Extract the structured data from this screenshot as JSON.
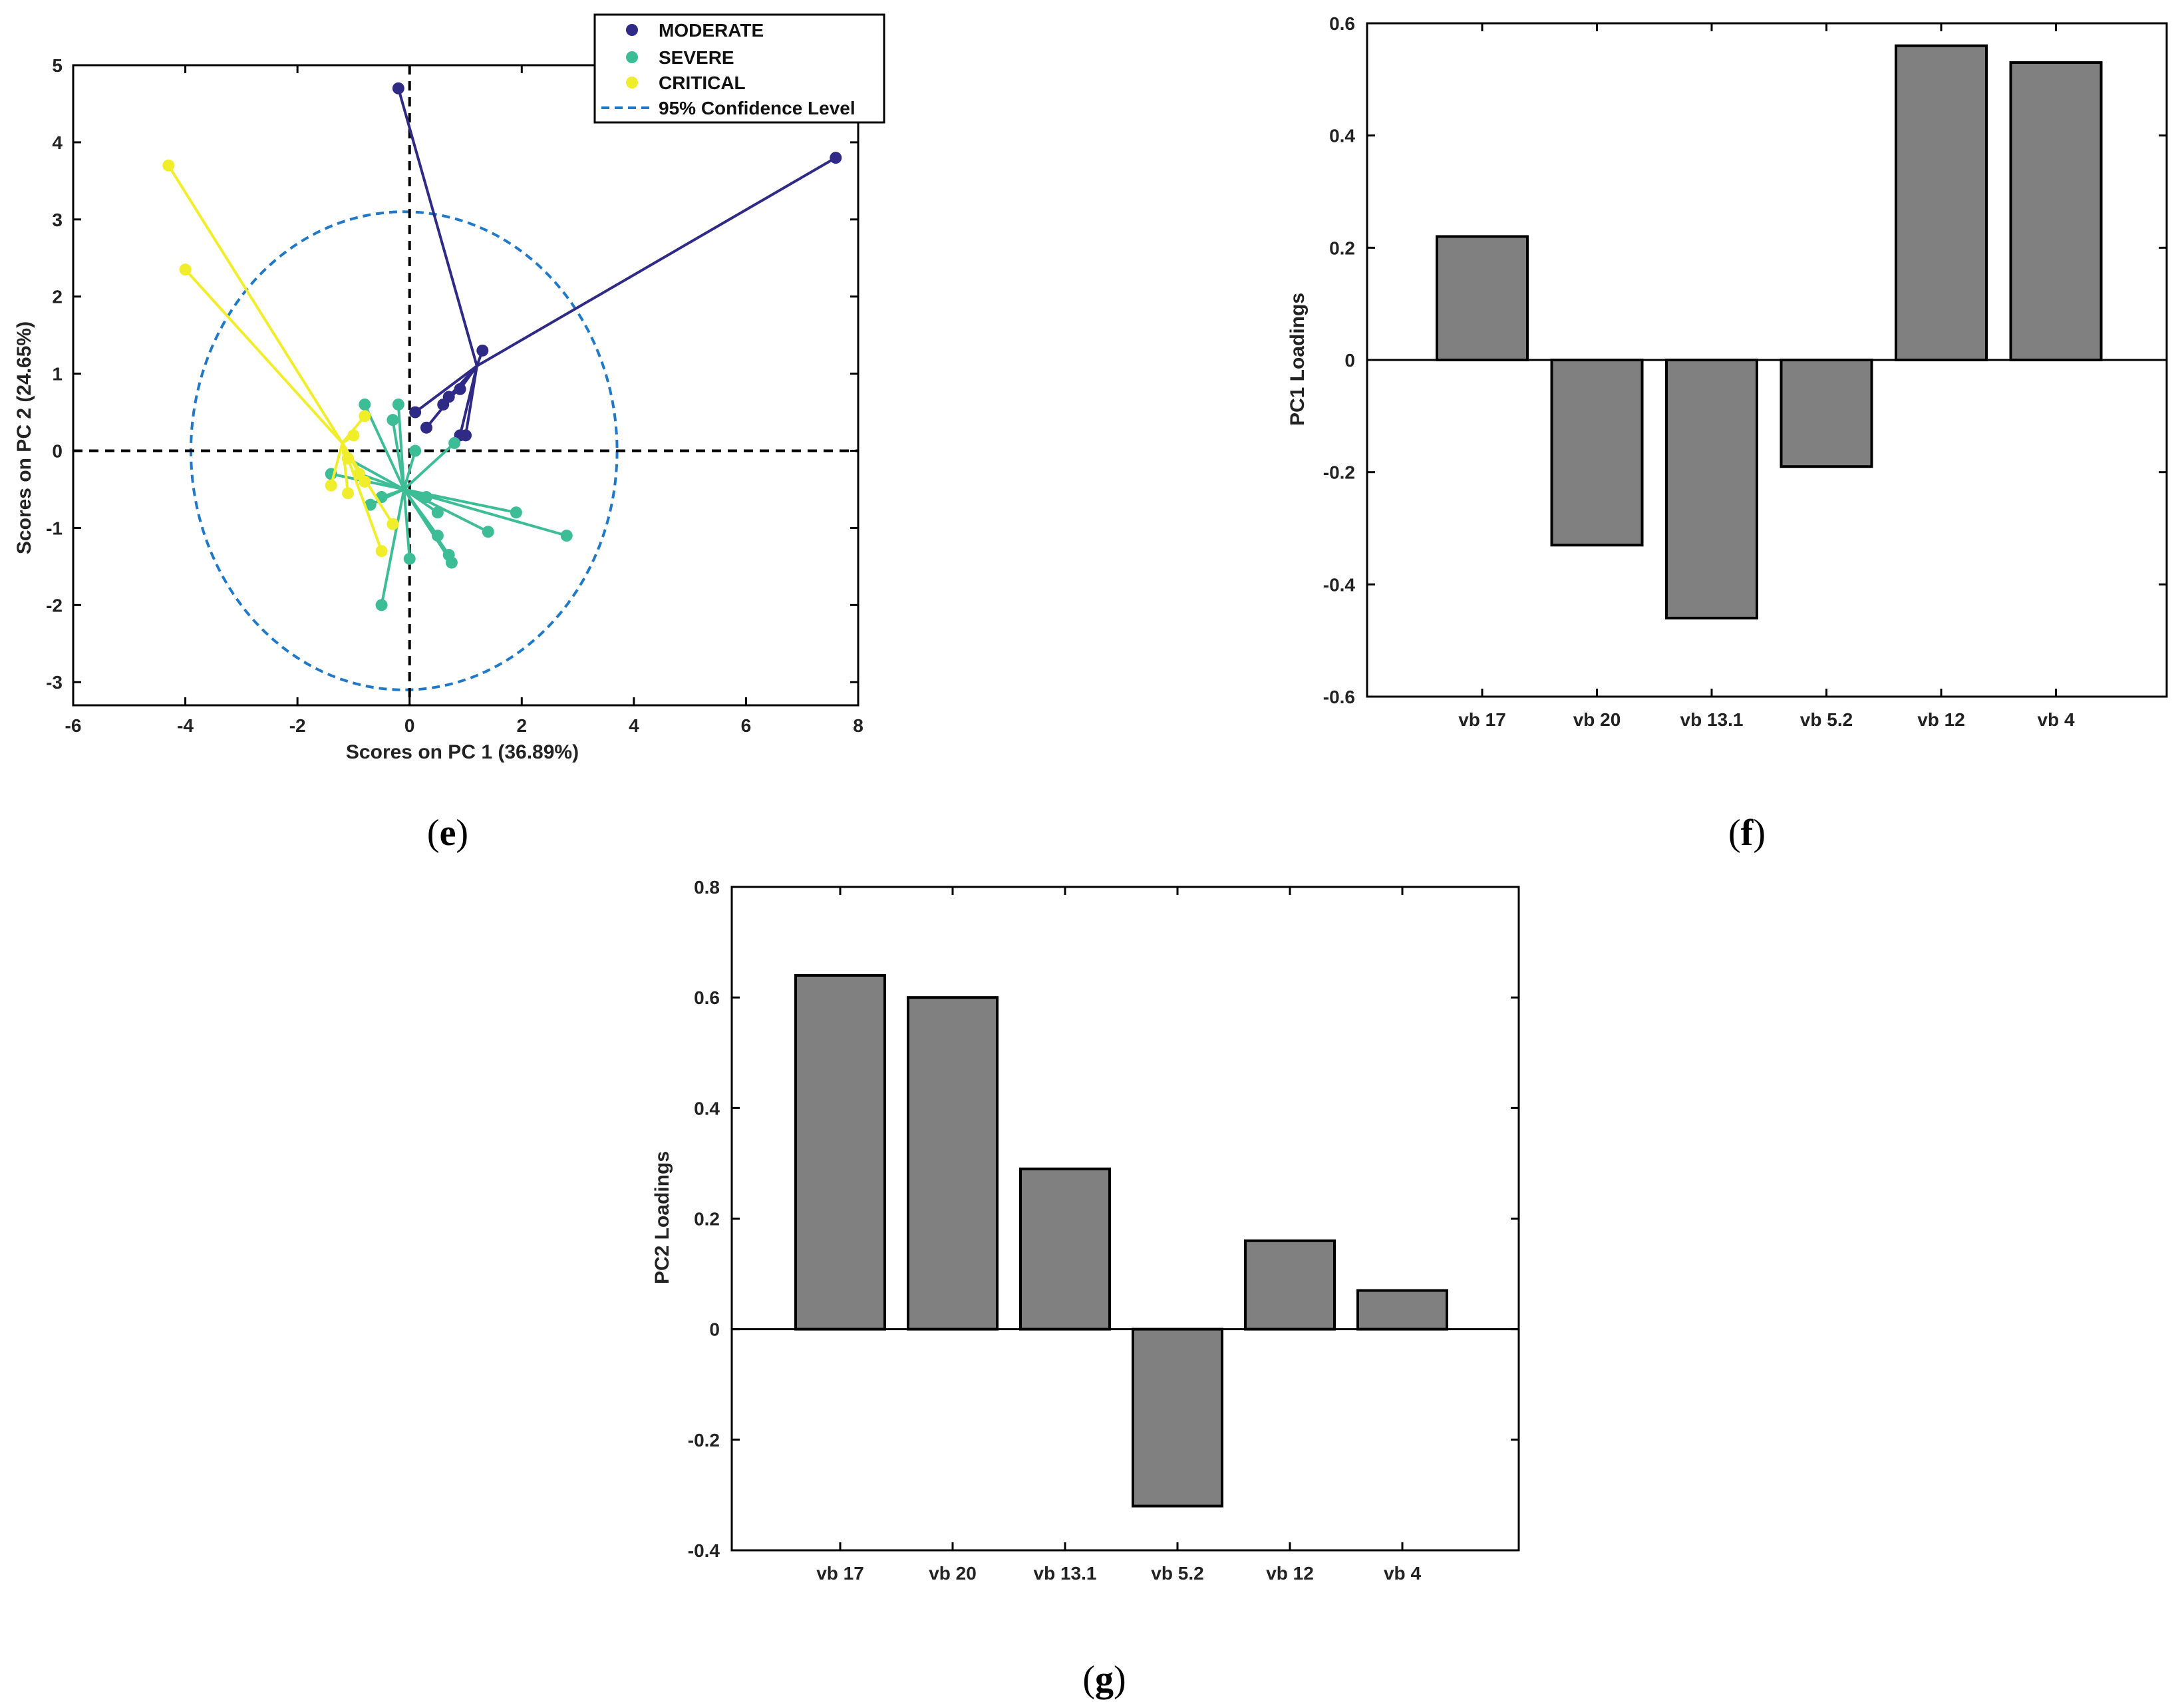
{
  "colors": {
    "moderate": "#2e2a86",
    "severe": "#3dbd96",
    "critical": "#f0ee2a",
    "confidence": "#1f78c8",
    "bar": "#808080"
  },
  "panels": {
    "e": "e",
    "f": "f",
    "g": "g"
  },
  "chart_data": [
    {
      "id": "e",
      "type": "scatter",
      "xlabel": "Scores on PC 1 (36.89%)",
      "ylabel": "Scores on PC 2 (24.65%)",
      "xlim": [
        -6,
        8
      ],
      "ylim": [
        -3.3,
        5.0
      ],
      "xticks": [
        -6,
        -4,
        -2,
        0,
        2,
        4,
        6,
        8
      ],
      "yticks": [
        -3,
        -2,
        -1,
        0,
        1,
        2,
        3,
        4,
        5
      ],
      "legend": [
        "MODERATE",
        "SEVERE",
        "CRITICAL",
        "95% Confidence Level"
      ],
      "legend_position": "top-right",
      "confidence_ellipse": {
        "center": [
          -0.1,
          0
        ],
        "radii": [
          3.8,
          3.1
        ]
      },
      "series": [
        {
          "name": "MODERATE",
          "color_key": "moderate",
          "centroid": [
            1.2,
            1.1
          ],
          "points": [
            [
              -0.2,
              4.7
            ],
            [
              7.6,
              3.8
            ],
            [
              1.3,
              1.3
            ],
            [
              0.9,
              0.8
            ],
            [
              0.7,
              0.7
            ],
            [
              0.6,
              0.6
            ],
            [
              0.1,
              0.5
            ],
            [
              0.3,
              0.3
            ],
            [
              0.9,
              0.2
            ],
            [
              1.0,
              0.2
            ]
          ]
        },
        {
          "name": "SEVERE",
          "color_key": "severe",
          "centroid": [
            -0.1,
            -0.5
          ],
          "points": [
            [
              -0.8,
              0.6
            ],
            [
              -0.2,
              0.6
            ],
            [
              -0.3,
              0.4
            ],
            [
              0.8,
              0.1
            ],
            [
              -1.4,
              -0.3
            ],
            [
              -0.5,
              -0.6
            ],
            [
              -0.7,
              -0.7
            ],
            [
              0.5,
              -0.8
            ],
            [
              1.9,
              -0.8
            ],
            [
              0.5,
              -1.1
            ],
            [
              1.4,
              -1.05
            ],
            [
              2.8,
              -1.1
            ],
            [
              0.7,
              -1.35
            ],
            [
              0.75,
              -1.45
            ],
            [
              0.0,
              -1.4
            ],
            [
              -0.5,
              -2.0
            ],
            [
              -1.1,
              -0.1
            ],
            [
              0.3,
              -0.6
            ],
            [
              -0.9,
              -0.3
            ],
            [
              0.1,
              0.0
            ]
          ]
        },
        {
          "name": "CRITICAL",
          "color_key": "critical",
          "centroid": [
            -1.2,
            0.1
          ],
          "points": [
            [
              -4.3,
              3.7
            ],
            [
              -4.0,
              2.35
            ],
            [
              -0.8,
              0.45
            ],
            [
              -1.0,
              0.2
            ],
            [
              -1.1,
              -0.1
            ],
            [
              -0.9,
              -0.3
            ],
            [
              -0.8,
              -0.4
            ],
            [
              -1.4,
              -0.45
            ],
            [
              -1.1,
              -0.55
            ],
            [
              -0.3,
              -0.95
            ],
            [
              -0.5,
              -1.3
            ]
          ]
        }
      ]
    },
    {
      "id": "f",
      "type": "bar",
      "categories": [
        "vb 17",
        "vb 20",
        "vb 13.1",
        "vb 5.2",
        "vb 12",
        "vb 4"
      ],
      "values": [
        0.22,
        -0.33,
        -0.46,
        -0.19,
        0.56,
        0.53
      ],
      "ylabel": "PC1 Loadings",
      "xlabel": "",
      "ylim": [
        -0.6,
        0.6
      ],
      "yticks": [
        -0.6,
        -0.4,
        -0.2,
        0,
        0.2,
        0.4,
        0.6
      ],
      "ytick_labels": [
        "-0.6",
        "-0.4",
        "-0.2",
        "0",
        "0.2",
        "0.4",
        "0.6"
      ]
    },
    {
      "id": "g",
      "type": "bar",
      "categories": [
        "vb 17",
        "vb 20",
        "vb 13.1",
        "vb 5.2",
        "vb 12",
        "vb 4"
      ],
      "values": [
        0.64,
        0.6,
        0.29,
        -0.32,
        0.16,
        0.07
      ],
      "ylabel": "PC2 Loadings",
      "xlabel": "",
      "ylim": [
        -0.4,
        0.8
      ],
      "yticks": [
        -0.4,
        -0.2,
        0,
        0.2,
        0.4,
        0.6,
        0.8
      ],
      "ytick_labels": [
        "-0.4",
        "-0.2",
        "0",
        "0.2",
        "0.4",
        "0.6",
        "0.8"
      ]
    }
  ]
}
